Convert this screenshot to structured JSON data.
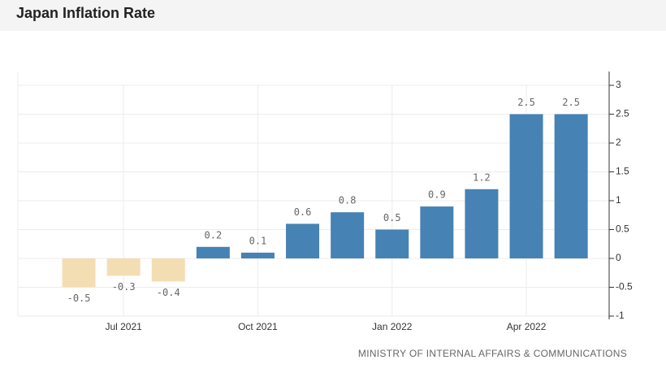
{
  "chart_data": {
    "type": "bar",
    "title": "Japan Inflation Rate",
    "source": "MINISTRY OF INTERNAL AFFAIRS & COMMUNICATIONS",
    "categories": [
      null,
      "Jul 2021",
      null,
      null,
      "Oct 2021",
      null,
      null,
      "Jan 2022",
      null,
      null,
      "Apr 2022",
      null
    ],
    "values": [
      -0.5,
      -0.3,
      -0.4,
      0.2,
      0.1,
      0.6,
      0.8,
      0.5,
      0.9,
      1.2,
      2.5,
      2.5
    ],
    "color": "#4682b4",
    "negative_color": "#f3deb3",
    "ylim": [
      -1,
      3
    ],
    "yticks": [
      -1,
      -0.5,
      0,
      0.5,
      1,
      1.5,
      2,
      2.5,
      3
    ],
    "grid": true
  }
}
